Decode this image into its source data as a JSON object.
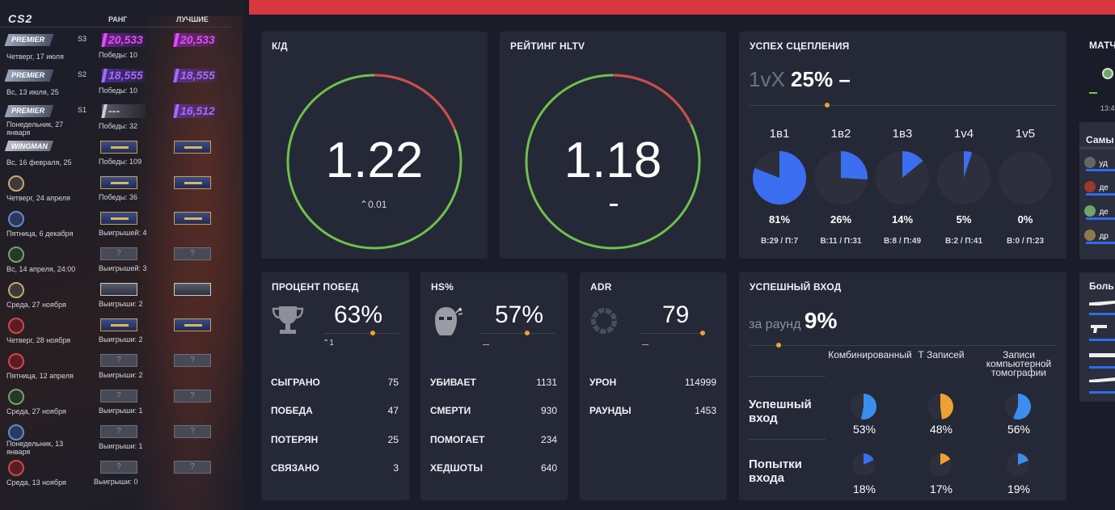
{
  "sidebar": {
    "logo": "CS2",
    "col_rank": "РАНГ",
    "col_best": "ЛУЧШИЕ",
    "rows": [
      {
        "badge": "PREMIER",
        "season": "S3",
        "date": "Четверг, 17 июля",
        "rating": "20,533",
        "best": "20,533",
        "wins": "Победы: 10"
      },
      {
        "badge": "PREMIER",
        "season": "S2",
        "date": "Вс, 13 июля, 25",
        "rating": "18,555",
        "best": "18,555",
        "wins": "Победы: 10"
      },
      {
        "badge": "PREMIER",
        "season": "S1",
        "date": "Понедельник, 27 января",
        "rating": "---",
        "best": "16,512",
        "wins": "Победы: 32"
      },
      {
        "badge": "WINGMAN",
        "date": "Вс, 16 февраля, 25",
        "wins": "Победы: 109"
      },
      {
        "date": "Четверг, 24 апреля",
        "wins": "Победы: 36"
      },
      {
        "date": "Пятница, 6 декабря",
        "wins": "Выигрышей: 4"
      },
      {
        "date": "Вс, 14 апреля, 24:00",
        "wins": "Выигрышей: 3",
        "rank_q": "?",
        "best_q": "?"
      },
      {
        "date": "Среда, 27 ноября",
        "wins": "Выигрыши: 2"
      },
      {
        "date": "Четверг, 28 ноября",
        "wins": "Выигрыши: 2"
      },
      {
        "date": "Пятница, 12 апреля",
        "wins": "Выигрыши: 2",
        "rank_q": "?",
        "best_q": "?"
      },
      {
        "date": "Среда, 27 ноября",
        "wins": "Выигрыши: 1",
        "rank_q": "?",
        "best_q": "?"
      },
      {
        "date": "Понедельник, 13 января",
        "wins": "Выигрыши: 1",
        "rank_q": "?",
        "best_q": "?"
      },
      {
        "date": "Среда, 13 ноября",
        "wins": "Выигрыши: 0",
        "rank_q": "?",
        "best_q": "?"
      }
    ]
  },
  "kd": {
    "title": "К/Д",
    "value": "1.22",
    "delta": "0.01",
    "ring_red_fraction": 0.19
  },
  "hltv": {
    "title": "РЕЙТИНГ HLTV",
    "value": "1.18",
    "ring_red_fraction": 0.18
  },
  "clutch": {
    "title": "УСПЕХ СЦЕПЛЕНИЯ",
    "prefix": "1vX",
    "value": "25%",
    "items": [
      {
        "label": "1в1",
        "pct": "81%",
        "fraction": 0.81,
        "sub": "В:29 / П:7"
      },
      {
        "label": "1в2",
        "pct": "26%",
        "fraction": 0.26,
        "sub": "В:11 / П:31"
      },
      {
        "label": "1в3",
        "pct": "14%",
        "fraction": 0.14,
        "sub": "В:8 / П:49"
      },
      {
        "label": "1v4",
        "pct": "5%",
        "fraction": 0.05,
        "sub": "В:2 / П:41"
      },
      {
        "label": "1v5",
        "pct": "0%",
        "fraction": 0.0,
        "sub": "В:0 / П:23"
      }
    ]
  },
  "winrate": {
    "title": "ПРОЦЕНТ ПОБЕД",
    "value": "63%",
    "delta": "1",
    "rows": [
      {
        "label": "СЫГРАНО",
        "value": "75"
      },
      {
        "label": "ПОБЕДА",
        "value": "47"
      },
      {
        "label": "ПОТЕРЯН",
        "value": "25"
      },
      {
        "label": "СВЯЗАНО",
        "value": "3"
      }
    ]
  },
  "hs": {
    "title": "HS%",
    "value": "57%",
    "rows": [
      {
        "label": "УБИВАЕТ",
        "value": "1131"
      },
      {
        "label": "СМЕРТИ",
        "value": "930"
      },
      {
        "label": "ПОМОГАЕТ",
        "value": "234"
      },
      {
        "label": "ХЕДШОТЫ",
        "value": "640"
      }
    ]
  },
  "adr": {
    "title": "ADR",
    "value": "79",
    "rows": [
      {
        "label": "УРОН",
        "value": "114999"
      },
      {
        "label": "РАУНДЫ",
        "value": "1453"
      }
    ]
  },
  "entry": {
    "title": "УСПЕШНЫЙ ВХОД",
    "prefix": "за раунд",
    "value": "9%",
    "col_headers": [
      "Комбинированный",
      "Т Записей",
      "Записи компьютерной томографии"
    ],
    "row_success": "Успешный вход",
    "row_attempts": "Попытки входа",
    "success": [
      {
        "pct": "53%",
        "fraction": 0.53,
        "color": "#3b8ef0"
      },
      {
        "pct": "48%",
        "fraction": 0.48,
        "color": "#f0a030"
      },
      {
        "pct": "56%",
        "fraction": 0.56,
        "color": "#3b8ef0"
      }
    ],
    "attempts": [
      {
        "pct": "18%",
        "fraction": 0.18,
        "color": "#3b6ef0"
      },
      {
        "pct": "17%",
        "fraction": 0.17,
        "color": "#f0a030"
      },
      {
        "pct": "19%",
        "fraction": 0.19,
        "color": "#3b8ef0"
      }
    ]
  },
  "right": {
    "matches_title": "МАТЧ",
    "time": "13:4",
    "most_title": "Самы",
    "most_items": [
      "уд",
      "де",
      "де",
      "др"
    ],
    "more_title": "Боль"
  },
  "colors": {
    "accent_blue": "#3b6ef0",
    "accent_orange": "#f0a030",
    "ring_green": "#6cc24a",
    "ring_red": "#d04a4a",
    "banner_red": "#d9373f"
  }
}
